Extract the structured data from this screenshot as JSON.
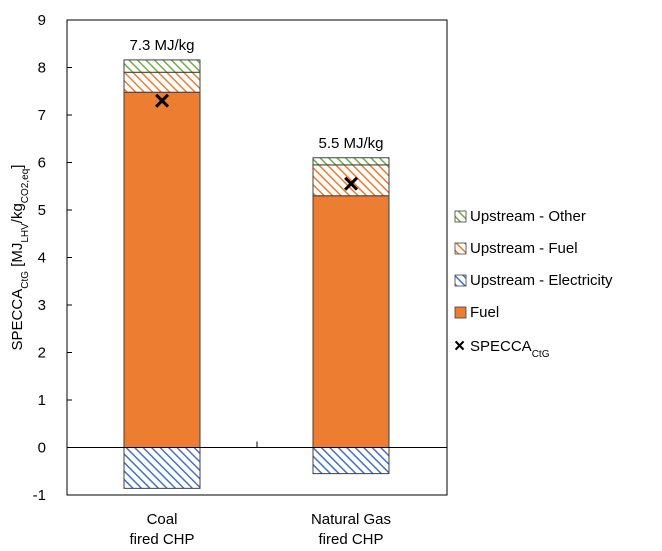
{
  "chart_data": {
    "type": "bar",
    "stacked": true,
    "categories": [
      [
        "Coal",
        "fired CHP"
      ],
      [
        "Natural Gas",
        "fired CHP"
      ]
    ],
    "ylabel": {
      "main": "SPECCA",
      "main_sub": "CtG",
      "open": " [MJ",
      "sub1": "LHV",
      "mid": "/kg",
      "sub2": "CO2,eq",
      "close": "]"
    },
    "ylim": [
      -1,
      9
    ],
    "yticks": [
      -1,
      0,
      1,
      2,
      3,
      4,
      5,
      6,
      7,
      8,
      9
    ],
    "grid": false,
    "legend_position": "right",
    "series": [
      {
        "name": "Upstream - Other",
        "values": [
          0.26,
          0.15
        ],
        "color": "#70ad47",
        "pattern": "hatch"
      },
      {
        "name": "Upstream - Fuel",
        "values": [
          0.42,
          0.65
        ],
        "color": "#ed7d31",
        "pattern": "hatch"
      },
      {
        "name": "Upstream - Electricity",
        "values": [
          -0.86,
          -0.55
        ],
        "color": "#4472c4",
        "pattern": "hatch"
      },
      {
        "name": "Fuel",
        "values": [
          7.48,
          5.3
        ],
        "color": "#ed7d31",
        "pattern": "solid"
      }
    ],
    "markers": {
      "name": "SPECCA",
      "name_sub": "CtG",
      "values": [
        7.3,
        5.55
      ],
      "symbol": "×"
    },
    "annotations": [
      "7.3 MJ/kg",
      "5.5 MJ/kg"
    ],
    "legend_order": [
      "Upstream - Other",
      "Upstream - Fuel",
      "Upstream - Electricity",
      "Fuel"
    ]
  }
}
